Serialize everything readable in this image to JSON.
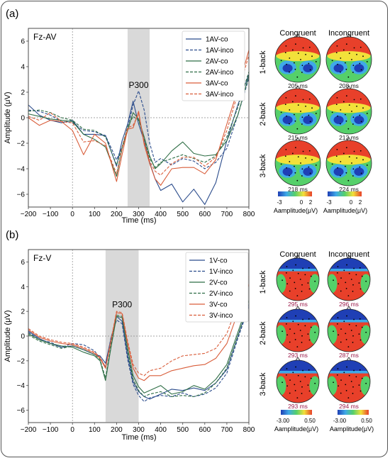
{
  "chart_data": [
    {
      "type": "line",
      "panel_label": "(a)",
      "title": "Fz-AV",
      "xlabel": "Time (ms)",
      "ylabel": "Amplitude (μV)",
      "xlim": [
        -200,
        800
      ],
      "ylim": [
        -7,
        7
      ],
      "xticks": [
        -200,
        -100,
        0,
        100,
        200,
        300,
        400,
        500,
        600,
        700,
        800
      ],
      "yticks": [
        -6,
        -4,
        -2,
        0,
        2,
        4,
        6
      ],
      "shaded_region": [
        250,
        350
      ],
      "annotation": "P300",
      "legend": "top-right",
      "series": [
        {
          "name": "1AV-co",
          "color": "#2b4c8c",
          "dash": "solid",
          "x": [
            -200,
            -150,
            -100,
            -50,
            0,
            50,
            100,
            150,
            200,
            225,
            250,
            275,
            300,
            325,
            350,
            375,
            400,
            450,
            500,
            550,
            600,
            650,
            700,
            750,
            800
          ],
          "y": [
            1.0,
            0.2,
            -0.2,
            -0.4,
            -0.2,
            -1.3,
            -1.3,
            -1.4,
            -3.8,
            -1.8,
            -0.5,
            1.3,
            -0.5,
            -1.8,
            -3.5,
            -4.8,
            -5.7,
            -5.2,
            -6.6,
            -5.6,
            -6.8,
            -5.1,
            -1.8,
            1.0,
            3.4
          ]
        },
        {
          "name": "1AV-inco",
          "color": "#2b4c8c",
          "dash": "dashed",
          "x": [
            -200,
            -150,
            -100,
            -50,
            0,
            50,
            100,
            150,
            200,
            225,
            250,
            275,
            300,
            325,
            350,
            375,
            400,
            450,
            500,
            550,
            600,
            650,
            700,
            750,
            800
          ],
          "y": [
            0.6,
            0.5,
            0.2,
            -0.3,
            -0.4,
            -1.0,
            -1.1,
            -1.4,
            -3.3,
            -2.3,
            -0.8,
            1.0,
            2.1,
            0.6,
            -2.0,
            -3.5,
            -3.2,
            -3.7,
            -3.2,
            -3.4,
            -4.0,
            -3.5,
            -2.4,
            0.2,
            3.1
          ]
        },
        {
          "name": "2AV-co",
          "color": "#2f6e46",
          "dash": "solid",
          "x": [
            -200,
            -150,
            -100,
            -50,
            0,
            50,
            100,
            150,
            200,
            225,
            250,
            275,
            300,
            325,
            350,
            375,
            400,
            450,
            500,
            550,
            600,
            650,
            700,
            750,
            800
          ],
          "y": [
            0.3,
            0.1,
            -0.1,
            -0.2,
            -0.3,
            -1.3,
            -1.7,
            -2.3,
            -4.6,
            -2.4,
            -1.0,
            0.4,
            -0.1,
            -1.5,
            -3.0,
            -4.0,
            -3.6,
            -2.6,
            -1.9,
            -2.8,
            -3.0,
            -2.9,
            -1.8,
            0.2,
            3.3
          ]
        },
        {
          "name": "2AV-inco",
          "color": "#2f6e46",
          "dash": "dashed",
          "x": [
            -200,
            -150,
            -100,
            -50,
            0,
            50,
            100,
            150,
            200,
            225,
            250,
            275,
            300,
            325,
            350,
            375,
            400,
            450,
            500,
            550,
            600,
            650,
            700,
            750,
            800
          ],
          "y": [
            0.5,
            0.6,
            0.4,
            0.0,
            -0.2,
            -0.9,
            -1.0,
            -1.5,
            -3.7,
            -2.3,
            -0.7,
            0.1,
            -0.2,
            -1.6,
            -3.2,
            -3.9,
            -3.5,
            -3.2,
            -2.9,
            -3.2,
            -3.5,
            -3.0,
            -1.5,
            0.8,
            3.6
          ]
        },
        {
          "name": "3AV-co",
          "color": "#d95d3a",
          "dash": "solid",
          "x": [
            -200,
            -150,
            -100,
            -50,
            0,
            50,
            100,
            150,
            200,
            225,
            250,
            275,
            300,
            325,
            350,
            375,
            400,
            450,
            500,
            550,
            600,
            650,
            700,
            750,
            800
          ],
          "y": [
            0.0,
            -0.6,
            -0.2,
            -0.3,
            -1.0,
            -2.9,
            -1.3,
            -2.0,
            -5.0,
            -2.9,
            -0.9,
            -0.8,
            0.5,
            -2.1,
            -3.6,
            -4.8,
            -5.3,
            -4.0,
            -3.9,
            -3.9,
            -4.4,
            -3.3,
            -0.5,
            2.2,
            5.3
          ]
        },
        {
          "name": "3AV-inco",
          "color": "#d95d3a",
          "dash": "dashed",
          "x": [
            -200,
            -150,
            -100,
            -50,
            0,
            50,
            100,
            150,
            200,
            225,
            250,
            275,
            300,
            325,
            350,
            375,
            400,
            450,
            500,
            550,
            600,
            650,
            700,
            750,
            800
          ],
          "y": [
            0.1,
            -0.2,
            0.4,
            -0.3,
            -0.4,
            -1.9,
            -1.8,
            -2.2,
            -4.4,
            -2.4,
            -0.8,
            -0.6,
            0.3,
            -1.9,
            -3.4,
            -4.2,
            -4.5,
            -3.6,
            -3.1,
            -3.1,
            -3.8,
            -3.1,
            -1.0,
            1.9,
            4.9
          ]
        }
      ]
    },
    {
      "type": "line",
      "panel_label": "(b)",
      "title": "Fz-V",
      "xlabel": "Time (ms)",
      "ylabel": "Amplitude (μV)",
      "xlim": [
        -200,
        800
      ],
      "ylim": [
        -7,
        7
      ],
      "xticks": [
        -200,
        -100,
        0,
        100,
        200,
        300,
        400,
        500,
        600,
        700,
        800
      ],
      "yticks": [
        -6,
        -4,
        -2,
        0,
        2,
        4,
        6
      ],
      "shaded_region": [
        150,
        300
      ],
      "annotation": "P300",
      "legend": "top-right",
      "series": [
        {
          "name": "1V-co",
          "color": "#2b4c8c",
          "dash": "solid",
          "x": [
            -200,
            -150,
            -100,
            -50,
            0,
            50,
            100,
            125,
            150,
            175,
            200,
            225,
            250,
            275,
            300,
            325,
            350,
            400,
            450,
            500,
            550,
            600,
            650,
            700,
            750,
            800
          ],
          "y": [
            0.4,
            -0.2,
            -0.6,
            -0.9,
            -0.8,
            -1.1,
            -1.5,
            -1.6,
            -2.2,
            -0.2,
            1.6,
            1.2,
            -1.6,
            -3.7,
            -4.5,
            -4.9,
            -5.1,
            -4.7,
            -4.3,
            -4.4,
            -4.2,
            -4.4,
            -3.8,
            -2.7,
            0.0,
            2.6
          ]
        },
        {
          "name": "1V-inco",
          "color": "#2b4c8c",
          "dash": "dashed",
          "x": [
            -200,
            -150,
            -100,
            -50,
            0,
            50,
            100,
            125,
            150,
            175,
            200,
            225,
            250,
            275,
            300,
            325,
            350,
            400,
            450,
            500,
            550,
            600,
            650,
            700,
            750,
            800
          ],
          "y": [
            0.3,
            -0.3,
            -0.5,
            -0.9,
            -0.6,
            -0.7,
            -1.2,
            -1.8,
            -2.5,
            -0.1,
            1.3,
            1.0,
            -1.9,
            -3.9,
            -4.8,
            -5.3,
            -5.0,
            -4.8,
            -4.9,
            -4.6,
            -4.9,
            -4.7,
            -4.2,
            -3.0,
            -0.2,
            2.4
          ]
        },
        {
          "name": "2V-co",
          "color": "#2f6e46",
          "dash": "solid",
          "x": [
            -200,
            -150,
            -100,
            -50,
            0,
            50,
            100,
            125,
            150,
            175,
            200,
            225,
            250,
            275,
            300,
            325,
            350,
            400,
            450,
            500,
            550,
            600,
            650,
            700,
            750,
            800
          ],
          "y": [
            0.2,
            -0.3,
            -0.6,
            -0.8,
            -0.9,
            -1.3,
            -1.6,
            -2.0,
            -3.6,
            -0.9,
            1.6,
            1.5,
            -1.0,
            -3.2,
            -4.1,
            -4.6,
            -4.4,
            -4.0,
            -4.7,
            -4.5,
            -4.0,
            -4.3,
            -3.5,
            -2.3,
            0.3,
            2.9
          ]
        },
        {
          "name": "2V-inco",
          "color": "#2f6e46",
          "dash": "dashed",
          "x": [
            -200,
            -150,
            -100,
            -50,
            0,
            50,
            100,
            125,
            150,
            175,
            200,
            225,
            250,
            275,
            300,
            325,
            350,
            400,
            450,
            500,
            550,
            600,
            650,
            700,
            750,
            800
          ],
          "y": [
            0.1,
            -0.4,
            -0.7,
            -1.0,
            -0.8,
            -1.1,
            -1.5,
            -1.9,
            -3.4,
            -0.7,
            1.7,
            1.6,
            -1.2,
            -3.5,
            -4.4,
            -4.9,
            -4.7,
            -4.5,
            -4.9,
            -4.8,
            -4.9,
            -4.6,
            -3.8,
            -2.6,
            0.0,
            2.7
          ]
        },
        {
          "name": "3V-co",
          "color": "#d95d3a",
          "dash": "solid",
          "x": [
            -200,
            -150,
            -100,
            -50,
            0,
            50,
            100,
            125,
            150,
            175,
            200,
            225,
            250,
            275,
            300,
            325,
            350,
            400,
            450,
            500,
            550,
            600,
            650,
            700,
            750,
            800
          ],
          "y": [
            0.5,
            -0.1,
            -0.4,
            -0.6,
            -0.7,
            -1.0,
            -1.4,
            -1.8,
            -2.6,
            -0.4,
            1.9,
            1.8,
            -0.6,
            -2.6,
            -3.4,
            -3.6,
            -3.2,
            -3.2,
            -2.8,
            -2.6,
            -2.4,
            -2.3,
            -1.8,
            -0.6,
            1.9,
            4.2
          ]
        },
        {
          "name": "3V-inco",
          "color": "#d95d3a",
          "dash": "dashed",
          "x": [
            -200,
            -150,
            -100,
            -50,
            0,
            50,
            100,
            125,
            150,
            175,
            200,
            225,
            250,
            275,
            300,
            325,
            350,
            400,
            450,
            500,
            550,
            600,
            650,
            700,
            750,
            800
          ],
          "y": [
            0.6,
            0.0,
            -0.3,
            -0.5,
            -0.6,
            -0.9,
            -1.3,
            -1.7,
            -2.5,
            -0.3,
            2.0,
            1.9,
            -0.4,
            -2.3,
            -3.0,
            -3.2,
            -2.8,
            -2.6,
            -2.0,
            -1.6,
            -1.5,
            -1.4,
            -1.0,
            0.2,
            2.6,
            4.8
          ]
        }
      ]
    }
  ],
  "topo_panels": [
    {
      "col_headers": [
        "Congruent",
        "Incongruent"
      ],
      "row_labels": [
        "1-back",
        "2-back",
        "3-back"
      ],
      "times": [
        [
          "205 ms",
          "208 ms"
        ],
        [
          "215 ms",
          "212 ms"
        ],
        [
          "218 ms",
          "224 ms"
        ]
      ],
      "colorbar_ticks_left": [
        "-3",
        "0",
        "2"
      ],
      "colorbar_ticks_right": [
        "-3",
        "0",
        "2"
      ],
      "colorbar_label": "Aamplitude(μV)",
      "colorbar_colors": [
        "#1f3fb5",
        "#3fa9e8",
        "#55d06a",
        "#f2e13a",
        "#e8402a"
      ],
      "time_color": "#222222"
    },
    {
      "col_headers": [
        "Congruent",
        "Incongruent"
      ],
      "row_labels": [
        "1-back",
        "2-back",
        "3-back"
      ],
      "times": [
        [
          "295 ms",
          "296 ms"
        ],
        [
          "293 ms",
          "287 ms"
        ],
        [
          "293 ms",
          "294 ms"
        ]
      ],
      "colorbar_ticks_left": [
        "-3.00",
        "0.50"
      ],
      "colorbar_ticks_right": [
        "-3.00",
        "0.50"
      ],
      "colorbar_label": "Aamplitude(μV)",
      "colorbar_colors": [
        "#1f3fb5",
        "#3fa9e8",
        "#55d06a",
        "#f2e13a",
        "#e8402a"
      ],
      "time_color": "#9b1b4a"
    }
  ]
}
